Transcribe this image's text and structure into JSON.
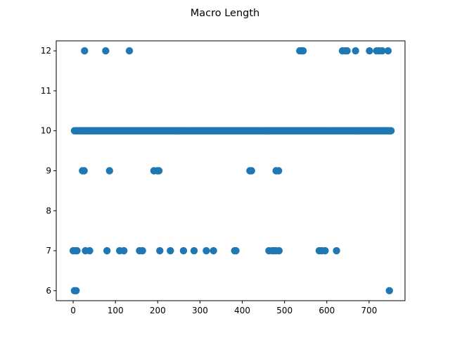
{
  "chart_data": {
    "type": "scatter",
    "title": "Macro Length",
    "xlabel": "",
    "ylabel": "",
    "xlim": [
      -40,
      785
    ],
    "ylim": [
      5.75,
      12.25
    ],
    "xticks": [
      0,
      100,
      200,
      300,
      400,
      500,
      600,
      700
    ],
    "yticks": [
      6,
      7,
      8,
      9,
      10,
      11,
      12
    ],
    "grid": false,
    "legend": "none",
    "marker_color": "#1f77b4",
    "series": [
      {
        "points": {
          "12": [
            27,
            77,
            133,
            536,
            540,
            544,
            637,
            643,
            648,
            668,
            701,
            718,
            724,
            731,
            745
          ],
          "10_range": [
            3,
            752
          ],
          "9": [
            22,
            26,
            86,
            191,
            199,
            203,
            418,
            422,
            480,
            486
          ],
          "7": [
            0,
            5,
            9,
            29,
            39,
            80,
            110,
            120,
            157,
            164,
            205,
            230,
            261,
            286,
            315,
            332,
            382,
            385,
            463,
            471,
            475,
            480,
            487,
            582,
            588,
            596,
            623
          ],
          "6": [
            3,
            7,
            748
          ]
        }
      }
    ]
  }
}
